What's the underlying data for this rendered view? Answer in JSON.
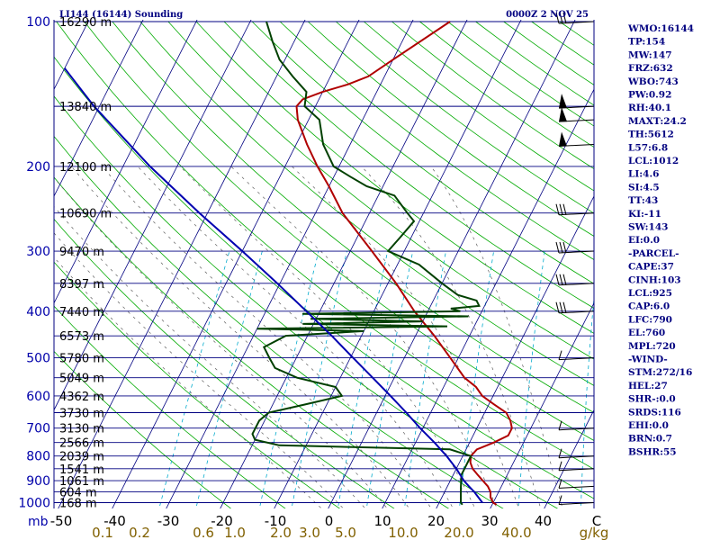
{
  "chart_data": {
    "type": "line",
    "title": "LI144 (16144) Sounding",
    "valid_time": "0000Z  2 NOV 25",
    "pressure_axis_label": "mb",
    "pressure_levels": [
      100,
      200,
      300,
      400,
      500,
      600,
      700,
      800,
      900,
      1000
    ],
    "temperature_ticks": [
      "-50",
      "-40",
      "-30",
      "-20",
      "-10",
      "0",
      "10",
      "20",
      "30",
      "40",
      "C"
    ],
    "mixing_ratio_ticks": [
      "0.1",
      "0.2",
      "0.6",
      "1.0",
      "2.0",
      "3.0",
      "5.0",
      "10.0",
      "20.0",
      "40.0",
      "g/kg"
    ],
    "height_labels": [
      {
        "p": 100,
        "label": "16290 m"
      },
      {
        "p": 150,
        "label": "13840 m"
      },
      {
        "p": 200,
        "label": "12100 m"
      },
      {
        "p": 250,
        "label": "10690 m"
      },
      {
        "p": 300,
        "label": "9470 m"
      },
      {
        "p": 350,
        "label": "8397 m"
      },
      {
        "p": 400,
        "label": "7440 m"
      },
      {
        "p": 450,
        "label": "6573 m"
      },
      {
        "p": 500,
        "label": "5780 m"
      },
      {
        "p": 550,
        "label": "5049 m"
      },
      {
        "p": 600,
        "label": "4362 m"
      },
      {
        "p": 650,
        "label": "3730 m"
      },
      {
        "p": 700,
        "label": "3130 m"
      },
      {
        "p": 750,
        "label": "2566 m"
      },
      {
        "p": 800,
        "label": "2039 m"
      },
      {
        "p": 850,
        "label": "1541 m"
      },
      {
        "p": 900,
        "label": "1061 m"
      },
      {
        "p": 950,
        "label": "604 m"
      },
      {
        "p": 1000,
        "label": "168 m"
      }
    ],
    "series": [
      {
        "color": "#b00000",
        "points": [
          [
            1010,
            20.8
          ],
          [
            1000,
            20
          ],
          [
            975,
            19
          ],
          [
            950,
            18.5
          ],
          [
            925,
            17.5
          ],
          [
            900,
            16
          ],
          [
            875,
            14.5
          ],
          [
            850,
            13
          ],
          [
            825,
            12
          ],
          [
            800,
            11.5
          ],
          [
            775,
            12
          ],
          [
            750,
            14.5
          ],
          [
            725,
            16.5
          ],
          [
            700,
            16.5
          ],
          [
            675,
            15.5
          ],
          [
            650,
            14
          ],
          [
            625,
            11
          ],
          [
            600,
            8
          ],
          [
            575,
            6
          ],
          [
            550,
            3
          ],
          [
            500,
            -1.5
          ],
          [
            450,
            -6.5
          ],
          [
            400,
            -12.5
          ],
          [
            350,
            -18.5
          ],
          [
            300,
            -26
          ],
          [
            250,
            -35
          ],
          [
            220,
            -40
          ],
          [
            200,
            -44
          ],
          [
            180,
            -48
          ],
          [
            160,
            -52
          ],
          [
            150,
            -53.5
          ],
          [
            145,
            -53
          ],
          [
            140,
            -50
          ],
          [
            135,
            -46
          ],
          [
            130,
            -43
          ],
          [
            120,
            -40
          ],
          [
            100,
            -33
          ]
        ]
      },
      {
        "color": "#004000",
        "points": [
          [
            1010,
            14.5
          ],
          [
            1000,
            14
          ],
          [
            975,
            13.5
          ],
          [
            950,
            13
          ],
          [
            925,
            12.5
          ],
          [
            900,
            12
          ],
          [
            875,
            11.5
          ],
          [
            850,
            11.5
          ],
          [
            800,
            11.5
          ],
          [
            775,
            7
          ],
          [
            760,
            -25
          ],
          [
            740,
            -30
          ],
          [
            720,
            -31
          ],
          [
            700,
            -31
          ],
          [
            675,
            -31
          ],
          [
            650,
            -30
          ],
          [
            625,
            -24
          ],
          [
            600,
            -18
          ],
          [
            575,
            -20
          ],
          [
            550,
            -28
          ],
          [
            525,
            -33
          ],
          [
            500,
            -35
          ],
          [
            475,
            -37
          ],
          [
            450,
            -34
          ],
          [
            440,
            -20
          ],
          [
            435,
            -40
          ],
          [
            430,
            -5
          ],
          [
            425,
            -32
          ],
          [
            420,
            -10
          ],
          [
            415,
            -31
          ],
          [
            410,
            -2
          ],
          [
            405,
            -33
          ],
          [
            400,
            -4
          ],
          [
            395,
            -6
          ],
          [
            390,
            -1
          ],
          [
            380,
            -2
          ],
          [
            370,
            -6
          ],
          [
            350,
            -10
          ],
          [
            320,
            -16
          ],
          [
            300,
            -23
          ],
          [
            280,
            -22
          ],
          [
            260,
            -21
          ],
          [
            250,
            -23
          ],
          [
            230,
            -27
          ],
          [
            220,
            -33
          ],
          [
            210,
            -37
          ],
          [
            200,
            -41
          ],
          [
            180,
            -45
          ],
          [
            160,
            -48
          ],
          [
            150,
            -52
          ],
          [
            140,
            -53
          ],
          [
            130,
            -57
          ],
          [
            120,
            -61
          ],
          [
            110,
            -64
          ],
          [
            100,
            -67
          ]
        ]
      },
      {
        "color": "#0000b0",
        "points": [
          [
            1000,
            18
          ],
          [
            950,
            15.5
          ],
          [
            925,
            14
          ],
          [
            900,
            12.5
          ],
          [
            850,
            10
          ],
          [
            800,
            7
          ],
          [
            750,
            3.5
          ],
          [
            700,
            -0.5
          ],
          [
            650,
            -4.5
          ],
          [
            600,
            -9
          ],
          [
            550,
            -14
          ],
          [
            500,
            -19.5
          ],
          [
            450,
            -25.5
          ],
          [
            400,
            -32.5
          ],
          [
            350,
            -40.5
          ],
          [
            300,
            -50
          ],
          [
            250,
            -61.5
          ],
          [
            200,
            -75
          ],
          [
            150,
            -91
          ],
          [
            125,
            -100
          ]
        ]
      }
    ]
  },
  "indices": [
    "WMO:16144",
    "TP:154",
    "MW:147",
    "FRZ:632",
    "WBO:743",
    "PW:0.92",
    "RH:40.1",
    "MAXT:24.2",
    "TH:5612",
    "L57:6.8",
    "LCL:1012",
    "LI:4.6",
    "SI:4.5",
    "TT:43",
    "KI:-11",
    "SW:143",
    "EI:0.0",
    "-PARCEL-",
    "CAPE:37",
    "CINH:103",
    "LCL:925",
    "CAP:6.0",
    "LFC:790",
    "EL:760",
    "MPL:720",
    "-WIND-",
    "STM:272/16",
    "HEL:27",
    "SHR-:0.0",
    "SRDS:116",
    "EHI:0.0",
    "BRN:0.7",
    "BSHR:55"
  ],
  "colors": {
    "isobar": "#000080",
    "isotherm": "#000080",
    "dry_adiabat": "#00aa00",
    "mixing_ratio": "#00aacc",
    "moist_adiabat": "#606060",
    "temperature": "#b00000",
    "dewpoint": "#004000",
    "parcel": "#0000b0",
    "frame": "#000080"
  }
}
